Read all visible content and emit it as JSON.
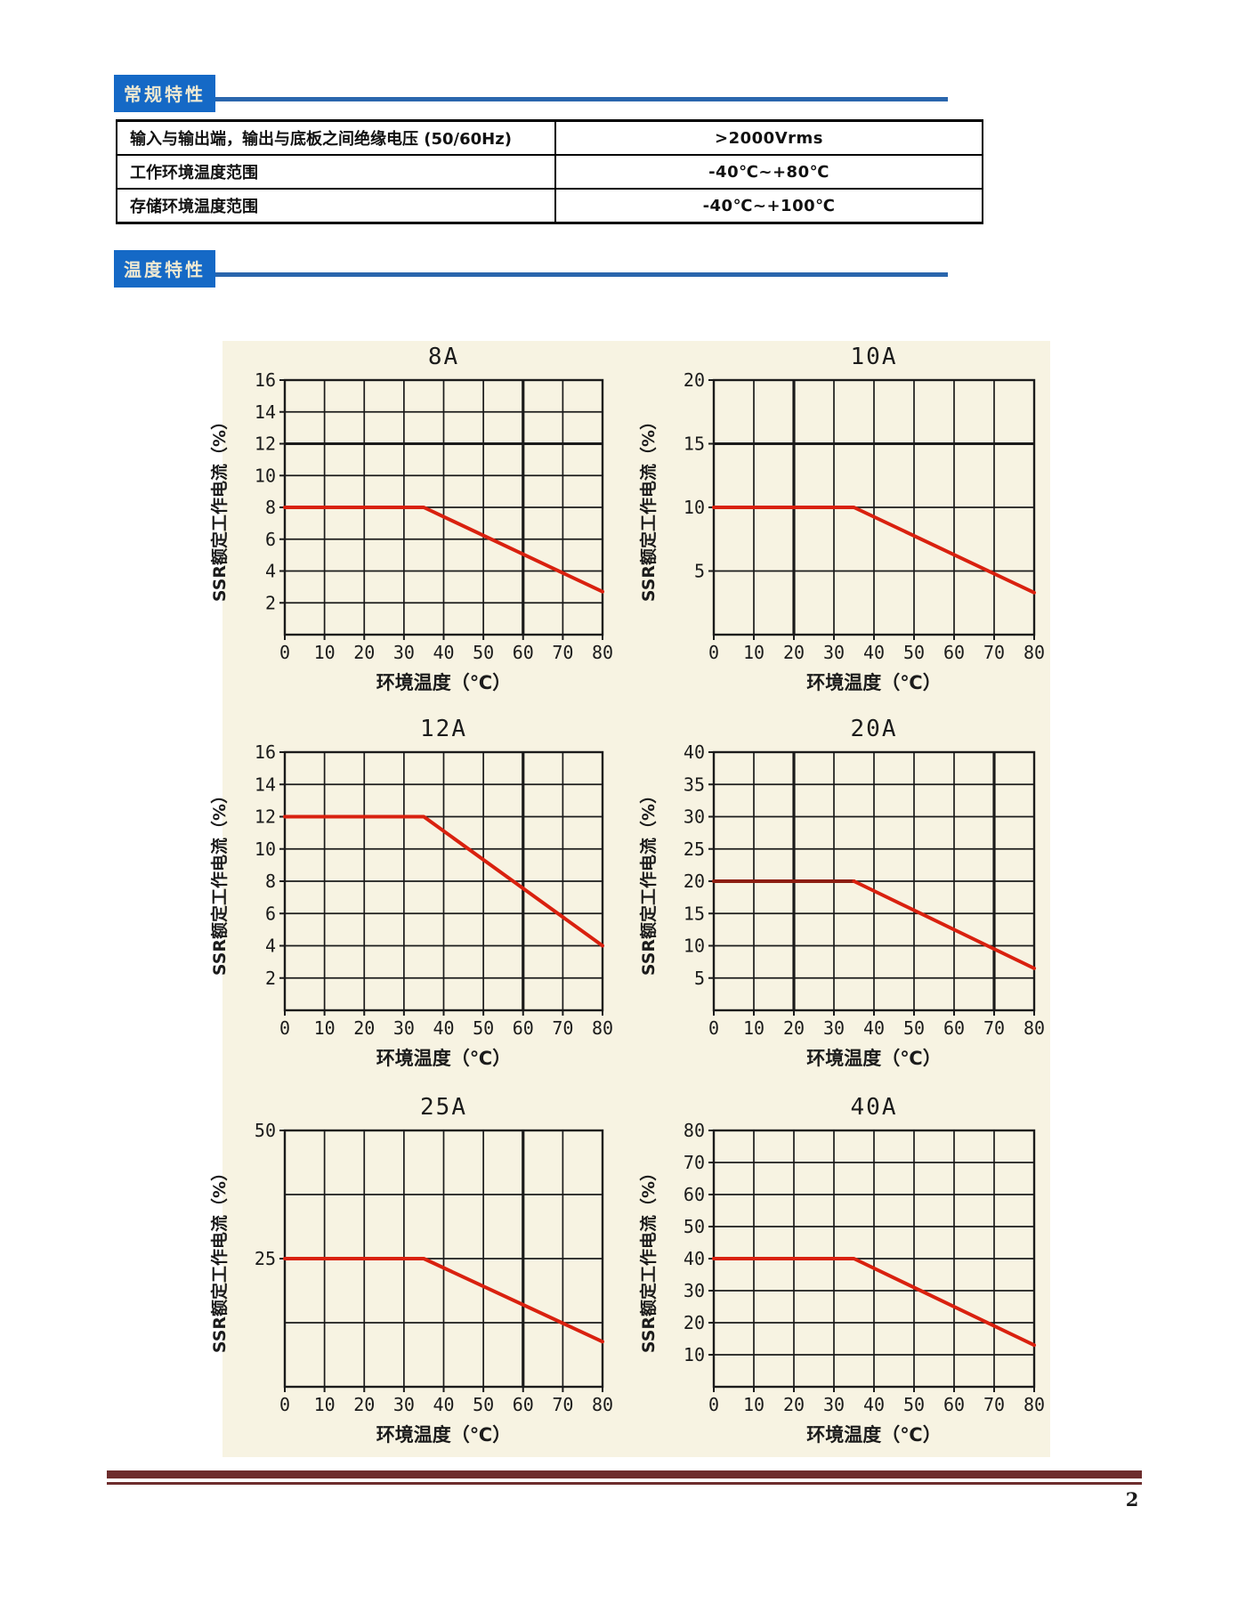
{
  "page": {
    "number": "2"
  },
  "sections": [
    {
      "title": "常规特性"
    },
    {
      "title": "温度特性"
    }
  ],
  "table": {
    "rows": [
      {
        "label": "输入与输出端，输出与底板之间绝缘电压 (50/60Hz)",
        "value": ">2000Vrms"
      },
      {
        "label": "工作环境温度范围",
        "value": "-40℃~+80℃"
      },
      {
        "label": "存储环境温度范围",
        "value": "-40℃~+100℃"
      }
    ]
  },
  "colors": {
    "header_blue": "#1569c6",
    "header_text": "#efe9d2",
    "rule_blue": "#2a66ad",
    "panel_beige": "#f7f3e2",
    "grid": "#1b1b1b",
    "line_red": "#d9210f",
    "line_dark_red": "#8c1d10",
    "footer_maroon": "#6d2d2d",
    "table_border": "#000000"
  },
  "chart_common": {
    "x_label": "环境温度（℃）",
    "y_label": "SSR额定工作电流（%）",
    "x_range": [
      0,
      80
    ],
    "x_ticks": [
      0,
      10,
      20,
      30,
      40,
      50,
      60,
      70,
      80
    ],
    "grid": true,
    "legend": "none"
  },
  "chart_data": [
    {
      "type": "line",
      "title": "8A",
      "xlabel": "环境温度（℃）",
      "ylabel": "SSR额定工作电流（%）",
      "xlim": [
        0,
        80
      ],
      "ylim": [
        0,
        16
      ],
      "y_grid_step": 2,
      "y_tick_labels": [
        2,
        4,
        6,
        8,
        10,
        12,
        14,
        16
      ],
      "x_ticks": [
        0,
        10,
        20,
        30,
        40,
        50,
        60,
        70,
        80
      ],
      "series": [
        {
          "name": "rated-current-derating",
          "points": [
            [
              0,
              8
            ],
            [
              35,
              8
            ],
            [
              80,
              2.7
            ]
          ]
        }
      ],
      "thick_x": [
        60
      ],
      "thick_y": [
        12
      ],
      "flat_dark": false
    },
    {
      "type": "line",
      "title": "10A",
      "xlabel": "环境温度（℃）",
      "ylabel": "SSR额定工作电流（%）",
      "xlim": [
        0,
        80
      ],
      "ylim": [
        0,
        20
      ],
      "y_grid_step": 5,
      "y_tick_labels": [
        5,
        10,
        15,
        20
      ],
      "x_ticks": [
        0,
        10,
        20,
        30,
        40,
        50,
        60,
        70,
        80
      ],
      "series": [
        {
          "name": "rated-current-derating",
          "points": [
            [
              0,
              10
            ],
            [
              35,
              10
            ],
            [
              80,
              3.3
            ]
          ]
        }
      ],
      "thick_x": [
        20
      ],
      "thick_y": [
        15
      ],
      "flat_dark": false
    },
    {
      "type": "line",
      "title": "12A",
      "xlabel": "环境温度（℃）",
      "ylabel": "SSR额定工作电流（%）",
      "xlim": [
        0,
        80
      ],
      "ylim": [
        0,
        16
      ],
      "y_grid_step": 2,
      "y_tick_labels": [
        2,
        4,
        6,
        8,
        10,
        12,
        14,
        16
      ],
      "x_ticks": [
        0,
        10,
        20,
        30,
        40,
        50,
        60,
        70,
        80
      ],
      "series": [
        {
          "name": "rated-current-derating",
          "points": [
            [
              0,
              12
            ],
            [
              35,
              12
            ],
            [
              80,
              4
            ]
          ]
        }
      ],
      "thick_x": [
        60
      ],
      "thick_y": [],
      "flat_dark": false
    },
    {
      "type": "line",
      "title": "20A",
      "xlabel": "环境温度（℃）",
      "ylabel": "SSR额定工作电流（%）",
      "xlim": [
        0,
        80
      ],
      "ylim": [
        0,
        40
      ],
      "y_grid_step": 5,
      "y_tick_labels": [
        5,
        10,
        15,
        20,
        25,
        30,
        35,
        40
      ],
      "x_ticks": [
        0,
        10,
        20,
        30,
        40,
        50,
        60,
        70,
        80
      ],
      "series": [
        {
          "name": "rated-current-derating",
          "points": [
            [
              0,
              20
            ],
            [
              35,
              20
            ],
            [
              80,
              6.5
            ]
          ]
        }
      ],
      "thick_x": [
        20,
        70
      ],
      "thick_y": [],
      "flat_dark": true
    },
    {
      "type": "line",
      "title": "25A",
      "xlabel": "环境温度（℃）",
      "ylabel": "SSR额定工作电流（%）",
      "xlim": [
        0,
        80
      ],
      "ylim": [
        0,
        50
      ],
      "y_grid_step": 12.5,
      "y_tick_labels": [
        25,
        50
      ],
      "x_ticks": [
        0,
        10,
        20,
        30,
        40,
        50,
        60,
        70,
        80
      ],
      "series": [
        {
          "name": "rated-current-derating",
          "points": [
            [
              0,
              25
            ],
            [
              35,
              25
            ],
            [
              80,
              8.8
            ]
          ]
        }
      ],
      "thick_x": [
        60
      ],
      "thick_y": [],
      "flat_dark": false
    },
    {
      "type": "line",
      "title": "40A",
      "xlabel": "环境温度（℃）",
      "ylabel": "SSR额定工作电流（%）",
      "xlim": [
        0,
        80
      ],
      "ylim": [
        0,
        80
      ],
      "y_grid_step": 10,
      "y_tick_labels": [
        10,
        20,
        30,
        40,
        50,
        60,
        70,
        80
      ],
      "x_ticks": [
        0,
        10,
        20,
        30,
        40,
        50,
        60,
        70,
        80
      ],
      "series": [
        {
          "name": "rated-current-derating",
          "points": [
            [
              0,
              40
            ],
            [
              35,
              40
            ],
            [
              80,
              13
            ]
          ]
        }
      ],
      "thick_x": [],
      "thick_y": [],
      "flat_dark": false
    }
  ]
}
